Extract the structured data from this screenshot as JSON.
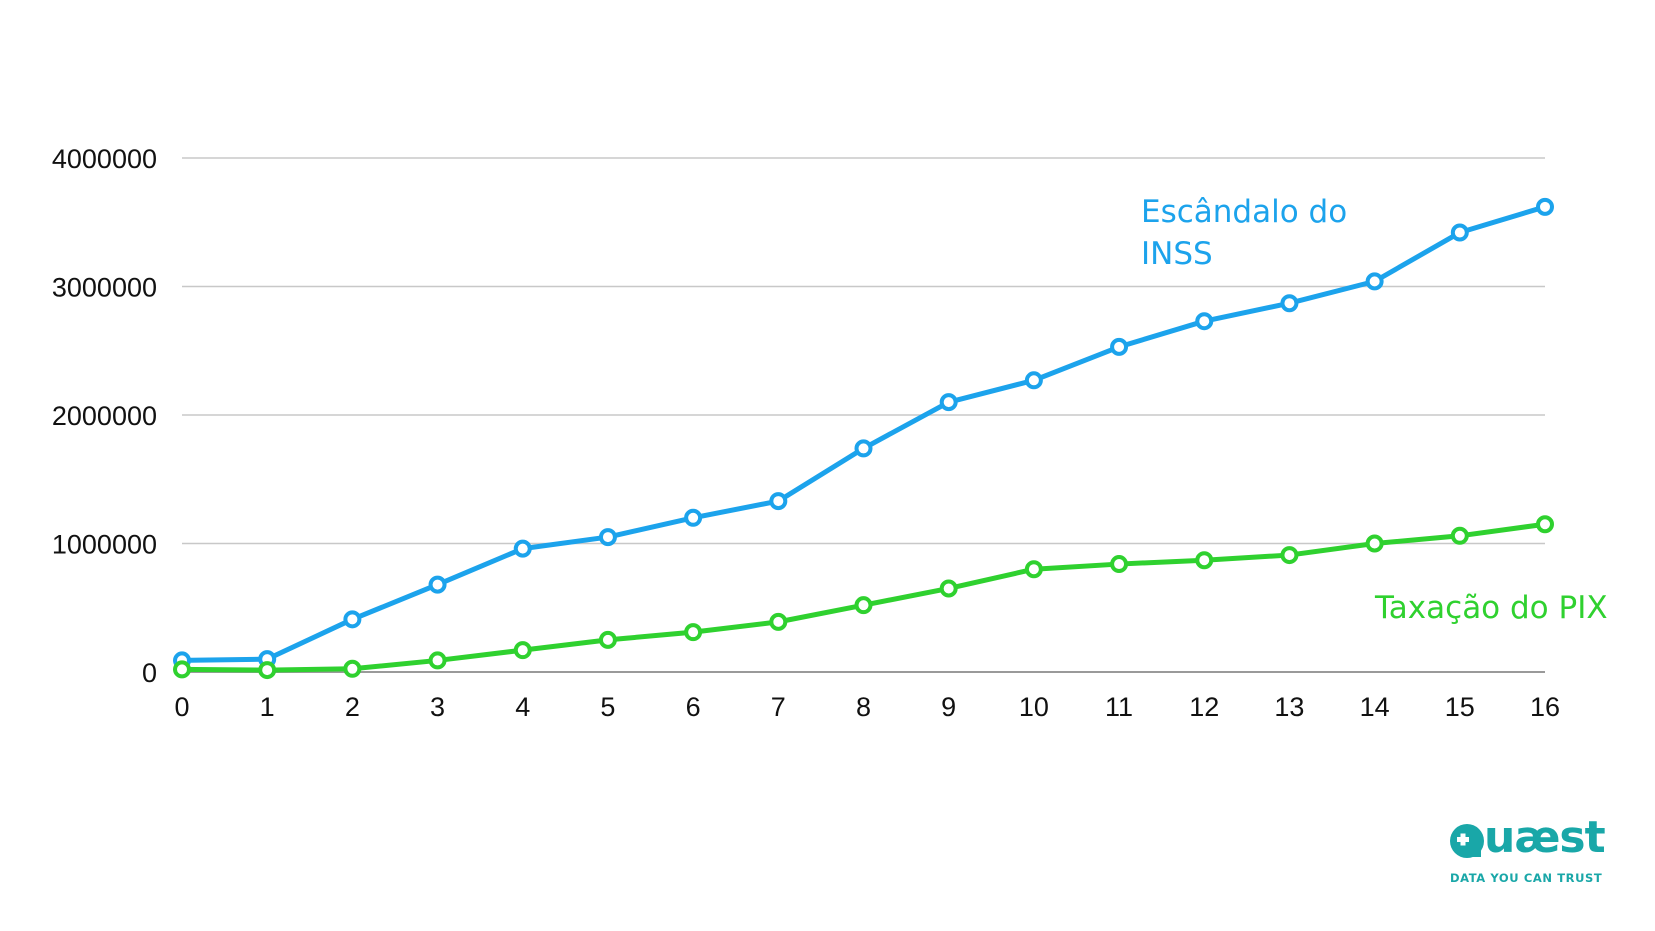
{
  "chart_data": {
    "type": "line",
    "x": [
      0,
      1,
      2,
      3,
      4,
      5,
      6,
      7,
      8,
      9,
      10,
      11,
      12,
      13,
      14,
      15,
      16
    ],
    "series": [
      {
        "name": "Escândalo do INSS",
        "label_lines": [
          "Escândalo do",
          "INSS"
        ],
        "color": "#1ca3ec",
        "values": [
          90000,
          100000,
          410000,
          680000,
          960000,
          1050000,
          1200000,
          1330000,
          1740000,
          2100000,
          2270000,
          2530000,
          2730000,
          2870000,
          3040000,
          3420000,
          3620000
        ]
      },
      {
        "name": "Taxação do PIX",
        "label_lines": [
          "Taxação do PIX"
        ],
        "color": "#2fd12f",
        "values": [
          20000,
          15000,
          25000,
          90000,
          170000,
          250000,
          310000,
          390000,
          520000,
          650000,
          800000,
          840000,
          870000,
          910000,
          1000000,
          1060000,
          1150000
        ]
      }
    ],
    "xlim": [
      0,
      16
    ],
    "ylim": [
      0,
      4000000
    ],
    "yticks": [
      "0",
      "1000000",
      "2000000",
      "3000000",
      "4000000"
    ],
    "xticks": [
      "0",
      "1",
      "2",
      "3",
      "4",
      "5",
      "6",
      "7",
      "8",
      "9",
      "10",
      "11",
      "12",
      "13",
      "14",
      "15",
      "16"
    ],
    "grid": true,
    "title": "",
    "xlabel": "",
    "ylabel": ""
  },
  "logo": {
    "name": "Quaest",
    "tagline": "DATA YOU CAN TRUST",
    "color": "#19a7a8"
  }
}
